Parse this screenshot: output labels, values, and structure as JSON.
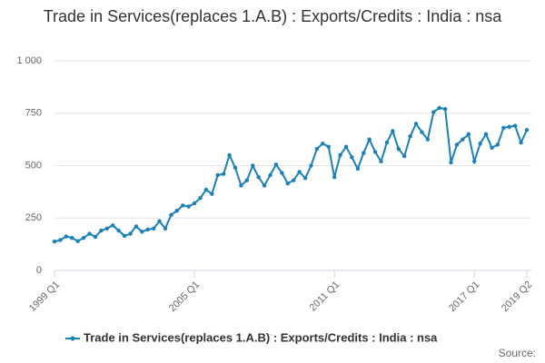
{
  "chart_data": {
    "type": "line",
    "title": "Trade in Services(replaces 1.A.B) : Exports/Credits : India : nsa",
    "source": "Source:",
    "categories": [
      "1999 Q1",
      null,
      null,
      null,
      null,
      null,
      null,
      null,
      null,
      null,
      null,
      null,
      null,
      null,
      null,
      null,
      null,
      null,
      null,
      null,
      null,
      null,
      null,
      null,
      "2005 Q1",
      null,
      null,
      null,
      null,
      null,
      null,
      null,
      null,
      null,
      null,
      null,
      null,
      null,
      null,
      null,
      null,
      null,
      null,
      null,
      null,
      null,
      null,
      null,
      "2011 Q1",
      null,
      null,
      null,
      null,
      null,
      null,
      null,
      null,
      null,
      null,
      null,
      null,
      null,
      null,
      null,
      null,
      null,
      null,
      null,
      null,
      null,
      null,
      null,
      "2017 Q1",
      null,
      null,
      null,
      null,
      null,
      null,
      null,
      null,
      "2019 Q2"
    ],
    "series": [
      {
        "name": "Trade in Services(replaces 1.A.B) : Exports/Credits : India : nsa",
        "color": "#1a80b6",
        "values": [
          138,
          145,
          162,
          155,
          140,
          155,
          175,
          160,
          190,
          200,
          215,
          190,
          165,
          175,
          210,
          185,
          195,
          200,
          235,
          200,
          265,
          285,
          310,
          305,
          320,
          345,
          385,
          365,
          455,
          460,
          550,
          490,
          405,
          430,
          500,
          445,
          405,
          455,
          505,
          465,
          415,
          430,
          470,
          440,
          500,
          580,
          605,
          590,
          445,
          550,
          590,
          540,
          485,
          560,
          625,
          565,
          520,
          610,
          665,
          580,
          545,
          640,
          700,
          660,
          625,
          755,
          775,
          770,
          515,
          600,
          625,
          650,
          520,
          605,
          650,
          585,
          600,
          680,
          685,
          690,
          610,
          670
        ]
      }
    ],
    "ylim": [
      0,
      1000
    ],
    "yticks": [
      0,
      250,
      500,
      750,
      {
        "value": 1000,
        "label": "1 000"
      }
    ],
    "grid": true
  }
}
